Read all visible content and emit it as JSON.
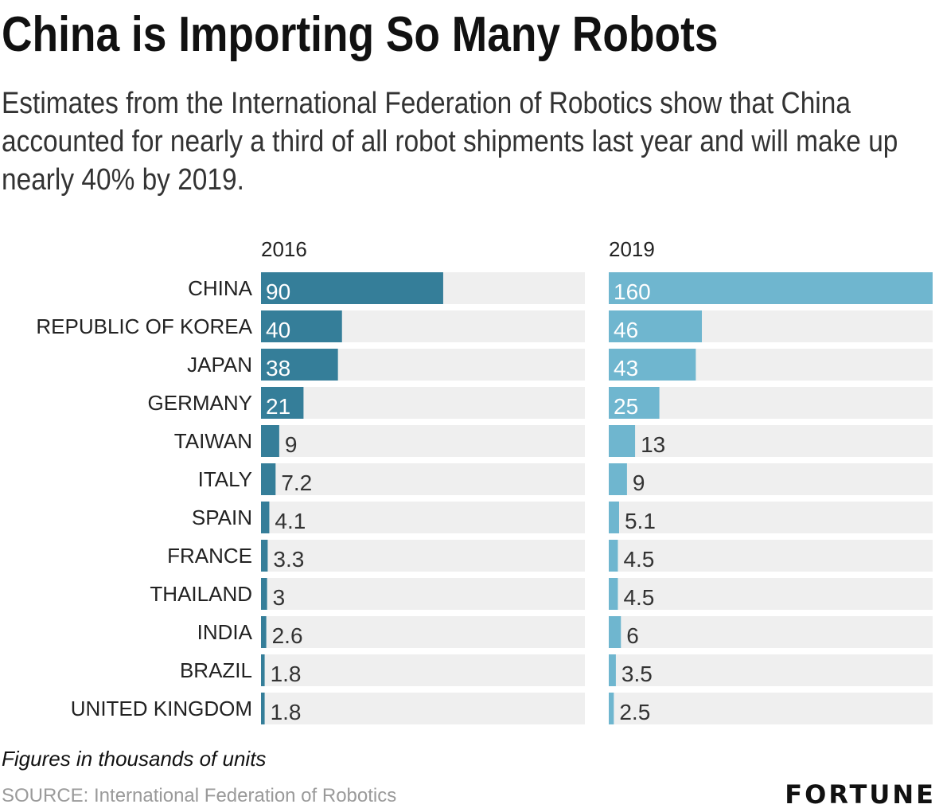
{
  "header": {
    "title": "China is Importing So Many Robots",
    "subtitle": "Estimates from the International Federation of Robotics show that China accounted for nearly a third of all robot shipments last year and will make up nearly 40% by 2019."
  },
  "footer": {
    "note": "Figures in thousands of units",
    "source": "SOURCE: International Federation of Robotics",
    "logo": "FORTUNE"
  },
  "colors": {
    "bar_2016": "#357e99",
    "bar_2019": "#6fb6cf",
    "track": "#efefef",
    "label_inside": "#ffffff",
    "label_outside": "#333333"
  },
  "chart_data": {
    "type": "bar",
    "orientation": "horizontal",
    "categories": [
      "CHINA",
      "REPUBLIC OF KOREA",
      "JAPAN",
      "GERMANY",
      "TAIWAN",
      "ITALY",
      "SPAIN",
      "FRANCE",
      "THAILAND",
      "INDIA",
      "BRAZIL",
      "UNITED KINGDOM"
    ],
    "series": [
      {
        "name": "2016",
        "values": [
          90,
          40,
          38,
          21,
          9,
          7.2,
          4.1,
          3.3,
          3,
          2.6,
          1.8,
          1.8
        ],
        "xlim": [
          0,
          160
        ]
      },
      {
        "name": "2019",
        "values": [
          160,
          46,
          43,
          25,
          13,
          9,
          5.1,
          4.5,
          4.5,
          6,
          3.5,
          2.5
        ],
        "xlim": [
          0,
          160
        ]
      }
    ],
    "value_labels": {
      "2016": [
        "90",
        "40",
        "38",
        "21",
        "9",
        "7.2",
        "4.1",
        "3.3",
        "3",
        "2.6",
        "1.8",
        "1.8"
      ],
      "2019": [
        "160",
        "46",
        "43",
        "25",
        "13",
        "9",
        "5.1",
        "4.5",
        "4.5",
        "6",
        "3.5",
        "2.5"
      ]
    },
    "inside_label_threshold": 15,
    "grid": false,
    "legend": "none"
  }
}
